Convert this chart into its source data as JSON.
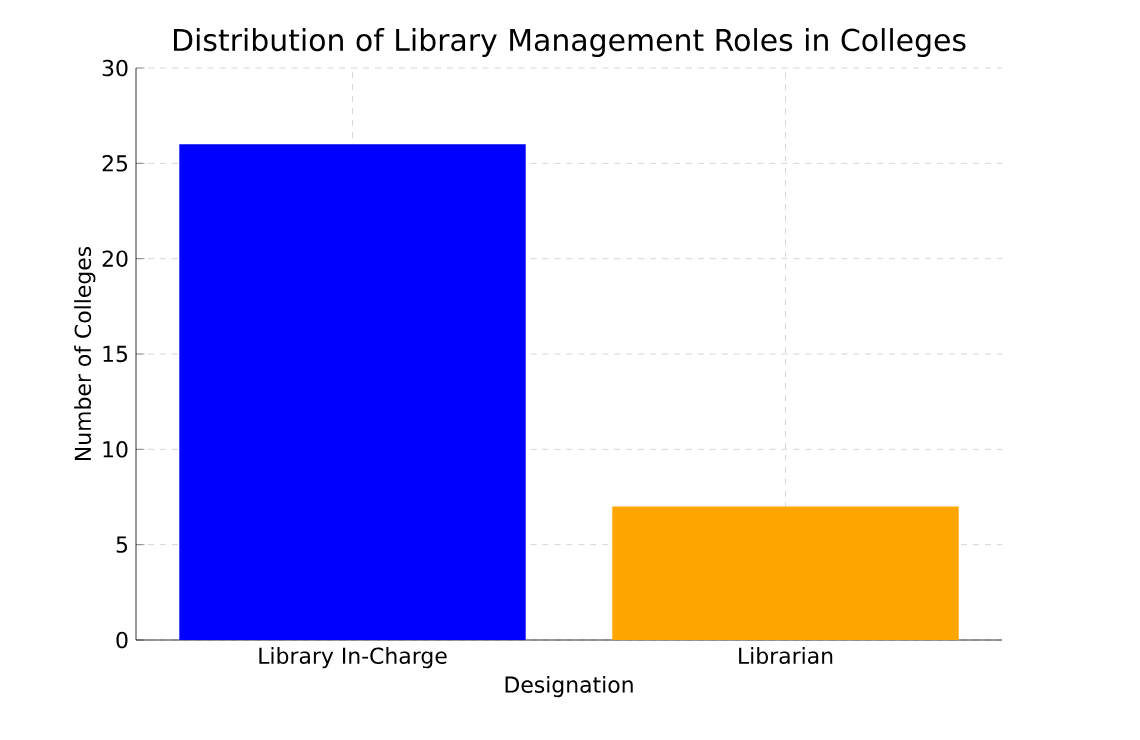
{
  "chart_data": {
    "type": "bar",
    "title": "Distribution of Library Management Roles in Colleges",
    "xlabel": "Designation",
    "ylabel": "Number of Colleges",
    "categories": [
      "Library In-Charge",
      "Librarian"
    ],
    "values": [
      26,
      7
    ],
    "colors": [
      "#0000ff",
      "#ffa500"
    ],
    "ylim": [
      0,
      30
    ],
    "yticks": [
      0,
      5,
      10,
      15,
      20,
      25,
      30
    ],
    "grid": true
  }
}
